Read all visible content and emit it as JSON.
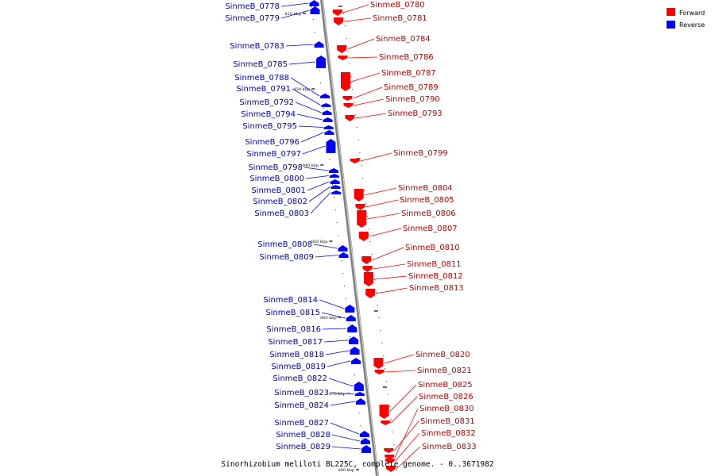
{
  "caption": "Sinorhizobium meliloti BL225C, complete genome. - 0..3671982",
  "legend": [
    {
      "label": "Forward",
      "color": "#ff0000"
    },
    {
      "label": "Reverse",
      "color": "#0000ff"
    }
  ],
  "colors": {
    "forward": "#ff0000",
    "reverse": "#0000ff",
    "backbone": "#808080"
  },
  "ticks": [
    "820 kbp",
    "830 kbp",
    "840 kbp",
    "850 kbp",
    "860 kbp",
    "870 kbp",
    "880 kbp"
  ],
  "genes_reverse": [
    "SinmeB_0778",
    "SinmeB_0779",
    "SinmeB_0783",
    "SinmeB_0785",
    "SinmeB_0788",
    "SinmeB_0791",
    "SinmeB_0792",
    "SinmeB_0794",
    "SinmeB_0795",
    "SinmeB_0796",
    "SinmeB_0797",
    "SinmeB_0798",
    "SinmeB_0800",
    "SinmeB_0801",
    "SinmeB_0802",
    "SinmeB_0803",
    "SinmeB_0808",
    "SinmeB_0809",
    "SinmeB_0814",
    "SinmeB_0815",
    "SinmeB_0816",
    "SinmeB_0817",
    "SinmeB_0818",
    "SinmeB_0819",
    "SinmeB_0822",
    "SinmeB_0823",
    "SinmeB_0824",
    "SinmeB_0827",
    "SinmeB_0828",
    "SinmeB_0829"
  ],
  "genes_forward": [
    "SinmeB_0780",
    "SinmeB_0781",
    "SinmeB_0784",
    "SinmeB_0786",
    "SinmeB_0787",
    "SinmeB_0789",
    "SinmeB_0790",
    "SinmeB_0793",
    "SinmeB_0799",
    "SinmeB_0804",
    "SinmeB_0805",
    "SinmeB_0806",
    "SinmeB_0807",
    "SinmeB_0810",
    "SinmeB_0811",
    "SinmeB_0812",
    "SinmeB_0813",
    "SinmeB_0820",
    "SinmeB_0821",
    "SinmeB_0825",
    "SinmeB_0826",
    "SinmeB_0830",
    "SinmeB_0831",
    "SinmeB_0832",
    "SinmeB_0833"
  ]
}
